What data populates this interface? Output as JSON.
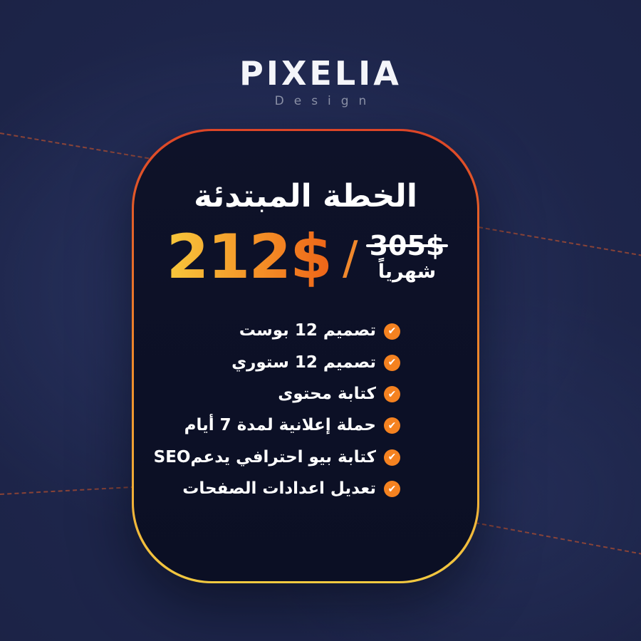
{
  "logo": {
    "text": "PIXELIA",
    "subtext": "Design"
  },
  "card": {
    "title": "الخطة المبتدئة",
    "price": {
      "current": "212$",
      "separator": "/",
      "original": "305$",
      "period": "شهرياً"
    },
    "check_glyph": "✔",
    "features": [
      {
        "label": "تصميم 12 بوست"
      },
      {
        "label": "تصميم 12 ستوري"
      },
      {
        "label": "كتابة محتوى"
      },
      {
        "label": "حملة إعلانية لمدة 7 أيام"
      },
      {
        "label": "كتابة بيو احترافي يدعمSEO"
      },
      {
        "label": "تعديل اعدادات الصفحات"
      }
    ]
  },
  "colors": {
    "background_navy": "#1b2245",
    "card_background": "#0c1027",
    "border_gradient_top": "#dd4527",
    "border_gradient_mid": "#ef8a2b",
    "border_gradient_bottom": "#f2c940",
    "price_gradient_start": "#f7c83c",
    "price_gradient_end": "#ee6418",
    "check_circle": "#f58220",
    "text_white": "#ffffff",
    "logo_sub_gray": "#8d93a9",
    "dashed_line": "#d1562a"
  }
}
